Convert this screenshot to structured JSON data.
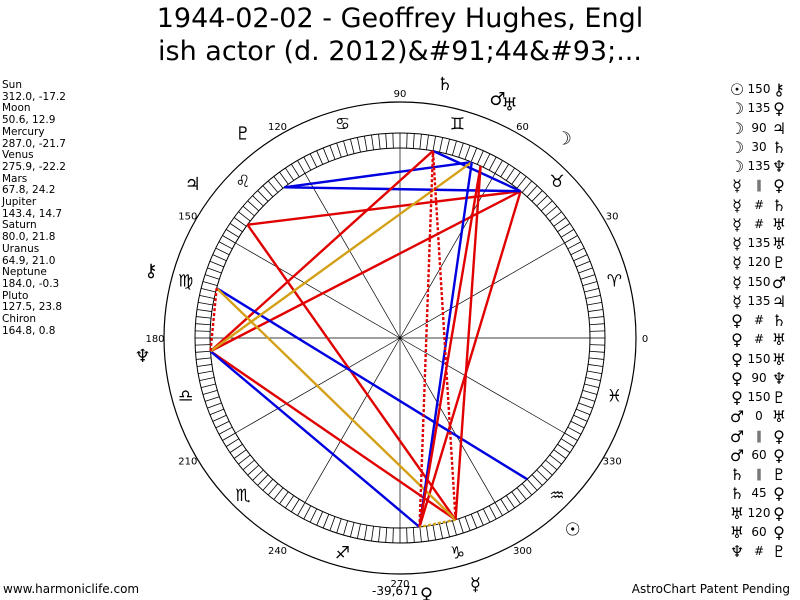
{
  "title": {
    "line1": "1944-02-02 - Geoffrey Hughes, Engl",
    "line2": "ish actor (d. 2012)&#91;44&#93;..."
  },
  "positions": [
    {
      "name": "Sun",
      "coords": "312.0, -17.2"
    },
    {
      "name": "Moon",
      "coords": "50.6, 12.9"
    },
    {
      "name": "Mercury",
      "coords": "287.0, -21.7"
    },
    {
      "name": "Venus",
      "coords": "275.9, -22.2"
    },
    {
      "name": "Mars",
      "coords": "67.8, 24.2"
    },
    {
      "name": "Jupiter",
      "coords": "143.4, 14.7"
    },
    {
      "name": "Saturn",
      "coords": "80.0, 21.8"
    },
    {
      "name": "Uranus",
      "coords": "64.9, 21.0"
    },
    {
      "name": "Neptune",
      "coords": "184.0, -0.3"
    },
    {
      "name": "Pluto",
      "coords": "127.5, 23.8"
    },
    {
      "name": "Chiron",
      "coords": "164.8, 0.8"
    }
  ],
  "aspects": [
    {
      "p1": "☉",
      "aspect": "150",
      "p2": "⚷"
    },
    {
      "p1": "☽",
      "aspect": "135",
      "p2": "♀"
    },
    {
      "p1": "☽",
      "aspect": "90",
      "p2": "♃"
    },
    {
      "p1": "☽",
      "aspect": "30",
      "p2": "♄"
    },
    {
      "p1": "☽",
      "aspect": "135",
      "p2": "♆"
    },
    {
      "p1": "☿",
      "aspect": "∥",
      "p2": "♀"
    },
    {
      "p1": "☿",
      "aspect": "#",
      "p2": "♄"
    },
    {
      "p1": "☿",
      "aspect": "#",
      "p2": "♅"
    },
    {
      "p1": "☿",
      "aspect": "135",
      "p2": "♅"
    },
    {
      "p1": "☿",
      "aspect": "120",
      "p2": "♇"
    },
    {
      "p1": "☿",
      "aspect": "150",
      "p2": "♂"
    },
    {
      "p1": "☿",
      "aspect": "135",
      "p2": "♃"
    },
    {
      "p1": "♀",
      "aspect": "#",
      "p2": "♄"
    },
    {
      "p1": "♀",
      "aspect": "#",
      "p2": "♅"
    },
    {
      "p1": "♀",
      "aspect": "150",
      "p2": "♅"
    },
    {
      "p1": "♀",
      "aspect": "90",
      "p2": "♆"
    },
    {
      "p1": "♀",
      "aspect": "150",
      "p2": "♇"
    },
    {
      "p1": "♂",
      "aspect": "0",
      "p2": "♅"
    },
    {
      "p1": "♂",
      "aspect": "∥",
      "p2": "♀"
    },
    {
      "p1": "♂",
      "aspect": "60",
      "p2": "♀"
    },
    {
      "p1": "♄",
      "aspect": "∥",
      "p2": "♇"
    },
    {
      "p1": "♄",
      "aspect": "45",
      "p2": "♀"
    },
    {
      "p1": "♅",
      "aspect": "120",
      "p2": "♀"
    },
    {
      "p1": "♅",
      "aspect": "60",
      "p2": "♀"
    },
    {
      "p1": "♆",
      "aspect": "#",
      "p2": "♇"
    }
  ],
  "wheel": {
    "degree_labels": [
      "0",
      "30",
      "60",
      "90",
      "120",
      "150",
      "180",
      "210",
      "240",
      "270",
      "300",
      "330"
    ],
    "center_value": "-39,671"
  },
  "footer": {
    "left": "www.harmoniclife.com",
    "right": "AstroChart Patent Pending"
  },
  "colors": {
    "red": "#e00000",
    "blue": "#0000e0",
    "gold": "#d4a017",
    "black": "#000000"
  }
}
